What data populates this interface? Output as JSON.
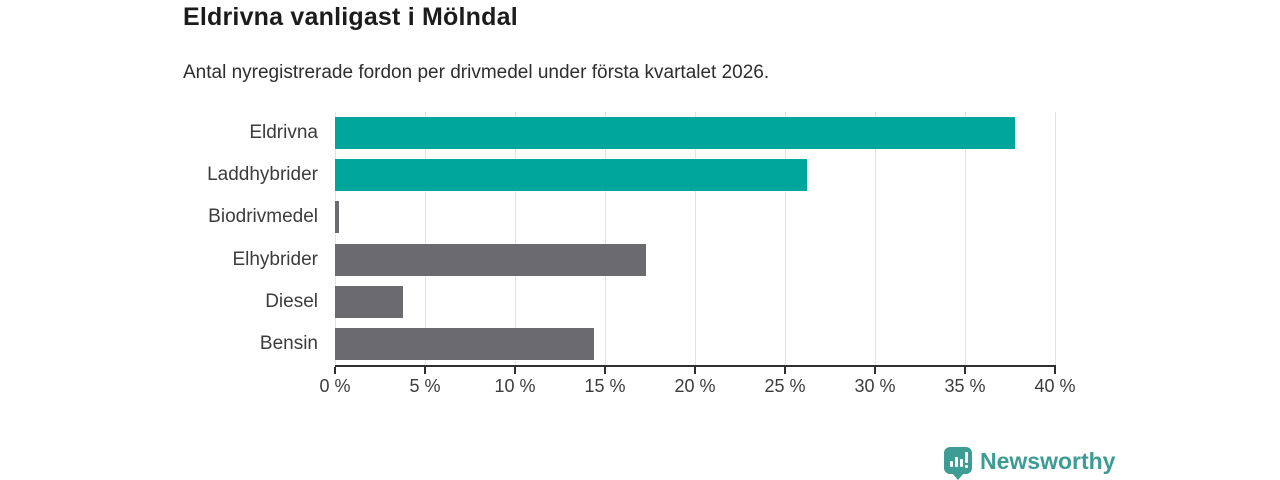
{
  "header": {
    "title": "Eldrivna vanligast i Mölndal",
    "subtitle": "Antal nyregistrerade fordon per drivmedel under första kvartalet 2026."
  },
  "chart_data": {
    "type": "bar",
    "orientation": "horizontal",
    "title": "Eldrivna vanligast i Mölndal",
    "subtitle": "Antal nyregistrerade fordon per drivmedel under första kvartalet 2026.",
    "categories": [
      "Eldrivna",
      "Laddhybrider",
      "Biodrivmedel",
      "Elhybrider",
      "Diesel",
      "Bensin"
    ],
    "values": [
      37.8,
      26.2,
      0.2,
      17.3,
      3.8,
      14.4
    ],
    "unit": "%",
    "xlim": [
      0,
      40
    ],
    "x_tick_values": [
      0,
      5,
      10,
      15,
      20,
      25,
      30,
      35,
      40
    ],
    "x_tick_labels": [
      "0 %",
      "5 %",
      "10 %",
      "15 %",
      "20 %",
      "25 %",
      "30 %",
      "35 %",
      "40 %"
    ],
    "grid": true,
    "legend": false,
    "bar_colors": [
      "#00a69c",
      "#00a69c",
      "#6b6b6f",
      "#6b6b6f",
      "#6b6b6f",
      "#6b6b6f"
    ],
    "highlight_color": "#00a69c",
    "default_color": "#6b6b6f",
    "gridline_color": "#e3e3e3",
    "axis_color": "#303030"
  },
  "footer": {
    "brand": "Newsworthy",
    "brand_color": "#3d9c94",
    "logo_icon": "bar-chart-speech-bubble-icon"
  }
}
